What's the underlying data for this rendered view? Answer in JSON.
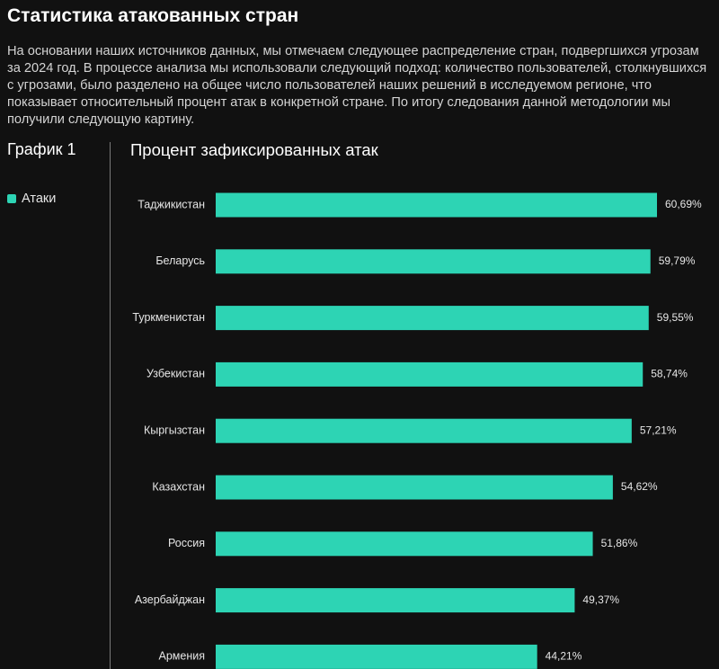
{
  "header": {
    "title": "Статистика атакованных стран",
    "intro": "На основании наших источников данных, мы отмечаем следующее распределение стран, подвергшихся угрозам за 2024 год. В процессе анализа мы использовали следующий подход: количество пользователей, столкнувшихся с угрозами, было разделено на общее число пользователей наших решений в исследуемом регионе, что показывает относительный процент атак в конкретной стране. По итогу следования данной методологии мы получили следующую картину."
  },
  "sidebar": {
    "graph_label": "График 1"
  },
  "colors": {
    "bar": "#2dd4b4",
    "background": "#111111"
  },
  "chart_data": {
    "type": "bar",
    "orientation": "horizontal",
    "title": "Процент зафиксированных атак",
    "legend": {
      "placement": "left",
      "entries": [
        "Атаки"
      ]
    },
    "categories": [
      "Таджикистан",
      "Беларусь",
      "Туркменистан",
      "Узбекистан",
      "Кыргызстан",
      "Казахстан",
      "Россия",
      "Азербайджан",
      "Армения"
    ],
    "series": [
      {
        "name": "Атаки",
        "values": [
          60.69,
          59.79,
          59.55,
          58.74,
          57.21,
          54.62,
          51.86,
          49.37,
          44.21
        ],
        "labels": [
          "60,69%",
          "59,79%",
          "59,55%",
          "58,74%",
          "57,21%",
          "54,62%",
          "51,86%",
          "49,37%",
          "44,21%"
        ]
      }
    ],
    "xlim": [
      0,
      60.69
    ],
    "grid": false
  }
}
